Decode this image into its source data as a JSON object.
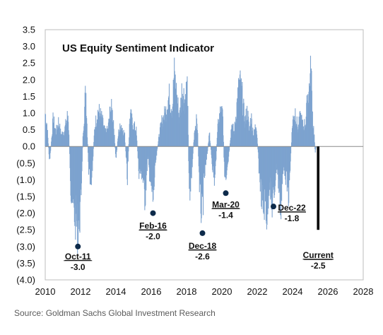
{
  "chart_data": {
    "type": "bar",
    "title": "US Equity Sentiment Indicator",
    "xlim": [
      2010,
      2028
    ],
    "ylim": [
      -4.0,
      3.5
    ],
    "x_ticks": [
      {
        "value": 2010,
        "label": "2010"
      },
      {
        "value": 2012,
        "label": "2012"
      },
      {
        "value": 2014,
        "label": "2014"
      },
      {
        "value": 2016,
        "label": "2016"
      },
      {
        "value": 2018,
        "label": "2018"
      },
      {
        "value": 2020,
        "label": "2020"
      },
      {
        "value": 2022,
        "label": "2022"
      },
      {
        "value": 2024,
        "label": "2024"
      },
      {
        "value": 2026,
        "label": "2026"
      },
      {
        "value": 2028,
        "label": "2028"
      }
    ],
    "y_ticks": [
      {
        "value": 3.5,
        "label": "3.5"
      },
      {
        "value": 3.0,
        "label": "3.0"
      },
      {
        "value": 2.5,
        "label": "2.5"
      },
      {
        "value": 2.0,
        "label": "2.0"
      },
      {
        "value": 1.5,
        "label": "1.5"
      },
      {
        "value": 1.0,
        "label": "1.0"
      },
      {
        "value": 0.5,
        "label": "0.5"
      },
      {
        "value": 0.0,
        "label": "0.0"
      },
      {
        "value": -0.5,
        "label": "(0.5)"
      },
      {
        "value": -1.0,
        "label": "(1.0)"
      },
      {
        "value": -1.5,
        "label": "(1.5)"
      },
      {
        "value": -2.0,
        "label": "(2.0)"
      },
      {
        "value": -2.5,
        "label": "(2.5)"
      },
      {
        "value": -3.0,
        "label": "(3.0)"
      },
      {
        "value": -3.5,
        "label": "(3.5)"
      },
      {
        "value": -4.0,
        "label": "(4.0)"
      }
    ],
    "series": [
      {
        "color": "#7da3cf",
        "anchors": [
          [
            2010.0,
            1.2
          ],
          [
            2010.1,
            0.8
          ],
          [
            2010.25,
            -0.6
          ],
          [
            2010.45,
            1.0
          ],
          [
            2010.6,
            0.5
          ],
          [
            2010.75,
            0.9
          ],
          [
            2010.9,
            0.4
          ],
          [
            2011.1,
            0.6
          ],
          [
            2011.3,
            1.2
          ],
          [
            2011.45,
            -1.5
          ],
          [
            2011.6,
            -2.3
          ],
          [
            2011.75,
            -2.7
          ],
          [
            2011.85,
            -3.0
          ],
          [
            2012.0,
            -2.3
          ],
          [
            2012.15,
            0.6
          ],
          [
            2012.3,
            2.1
          ],
          [
            2012.45,
            -0.8
          ],
          [
            2012.6,
            -1.6
          ],
          [
            2012.8,
            0.7
          ],
          [
            2013.0,
            1.3
          ],
          [
            2013.2,
            1.0
          ],
          [
            2013.4,
            0.5
          ],
          [
            2013.55,
            0.6
          ],
          [
            2013.7,
            1.4
          ],
          [
            2013.85,
            1.1
          ],
          [
            2014.0,
            -0.5
          ],
          [
            2014.15,
            0.5
          ],
          [
            2014.3,
            0.8
          ],
          [
            2014.5,
            0.4
          ],
          [
            2014.65,
            -1.2
          ],
          [
            2014.8,
            1.2
          ],
          [
            2014.95,
            0.8
          ],
          [
            2015.15,
            0.6
          ],
          [
            2015.3,
            -0.9
          ],
          [
            2015.5,
            -1.0
          ],
          [
            2015.65,
            -1.9
          ],
          [
            2015.8,
            -0.4
          ],
          [
            2015.95,
            -1.2
          ],
          [
            2016.1,
            -2.0
          ],
          [
            2016.25,
            -0.6
          ],
          [
            2016.45,
            0.4
          ],
          [
            2016.6,
            0.9
          ],
          [
            2016.8,
            1.2
          ],
          [
            2017.0,
            1.8
          ],
          [
            2017.2,
            1.4
          ],
          [
            2017.3,
            2.6
          ],
          [
            2017.45,
            1.8
          ],
          [
            2017.6,
            1.0
          ],
          [
            2017.75,
            2.1
          ],
          [
            2017.9,
            1.7
          ],
          [
            2018.05,
            2.2
          ],
          [
            2018.15,
            -1.8
          ],
          [
            2018.3,
            -0.9
          ],
          [
            2018.45,
            0.6
          ],
          [
            2018.6,
            1.0
          ],
          [
            2018.75,
            -1.7
          ],
          [
            2018.88,
            -2.6
          ],
          [
            2019.0,
            -1.2
          ],
          [
            2019.15,
            -0.4
          ],
          [
            2019.3,
            0.5
          ],
          [
            2019.45,
            -0.6
          ],
          [
            2019.6,
            -1.3
          ],
          [
            2019.75,
            0.6
          ],
          [
            2019.9,
            1.2
          ],
          [
            2020.05,
            1.2
          ],
          [
            2020.15,
            -1.1
          ],
          [
            2020.25,
            -1.4
          ],
          [
            2020.4,
            -0.3
          ],
          [
            2020.55,
            0.8
          ],
          [
            2020.7,
            0.5
          ],
          [
            2020.85,
            1.5
          ],
          [
            2021.0,
            2.3
          ],
          [
            2021.15,
            1.8
          ],
          [
            2021.3,
            0.9
          ],
          [
            2021.45,
            1.3
          ],
          [
            2021.55,
            0.5
          ],
          [
            2021.65,
            1.1
          ],
          [
            2021.8,
            0.4
          ],
          [
            2021.95,
            0.9
          ],
          [
            2022.1,
            -0.8
          ],
          [
            2022.2,
            -1.5
          ],
          [
            2022.35,
            -2.3
          ],
          [
            2022.45,
            -1.9
          ],
          [
            2022.55,
            -2.6
          ],
          [
            2022.7,
            -1.1
          ],
          [
            2022.8,
            -2.2
          ],
          [
            2022.95,
            -1.8
          ],
          [
            2023.1,
            -0.6
          ],
          [
            2023.2,
            -1.3
          ],
          [
            2023.35,
            -2.2
          ],
          [
            2023.5,
            -0.6
          ],
          [
            2023.65,
            -1.2
          ],
          [
            2023.8,
            -1.8
          ],
          [
            2023.9,
            -0.3
          ],
          [
            2024.0,
            0.9
          ],
          [
            2024.15,
            1.3
          ],
          [
            2024.3,
            0.6
          ],
          [
            2024.45,
            1.1
          ],
          [
            2024.6,
            0.7
          ],
          [
            2024.75,
            0.9
          ],
          [
            2024.85,
            1.8
          ],
          [
            2024.95,
            2.1
          ],
          [
            2025.05,
            2.75
          ],
          [
            2025.15,
            0.9
          ],
          [
            2025.22,
            0.5
          ],
          [
            2025.28,
            -0.2
          ],
          [
            2025.35,
            0.0
          ]
        ]
      }
    ],
    "current": {
      "x": 2025.45,
      "value": -2.5,
      "color": "#000000"
    },
    "annotations": [
      {
        "date": "Oct-11",
        "value": "-3.0",
        "x": 2011.85,
        "y": -3.0,
        "marker": true
      },
      {
        "date": "Feb-16",
        "value": "-2.0",
        "x": 2016.1,
        "y": -2.0,
        "marker": true
      },
      {
        "date": "Dec-18",
        "value": "-2.6",
        "x": 2018.9,
        "y": -2.6,
        "marker": true
      },
      {
        "date": "Mar-20",
        "value": "-1.4",
        "x": 2020.22,
        "y": -1.4,
        "marker": true
      },
      {
        "date": "Dec-22",
        "value": "-1.8",
        "x": 2022.92,
        "y": -1.8,
        "marker": true
      },
      {
        "date": "Current",
        "value": "-2.5",
        "x": 2025.45,
        "y": -2.5,
        "marker": false
      }
    ]
  },
  "source": "Source: Goldman Sachs Global Investment Research"
}
